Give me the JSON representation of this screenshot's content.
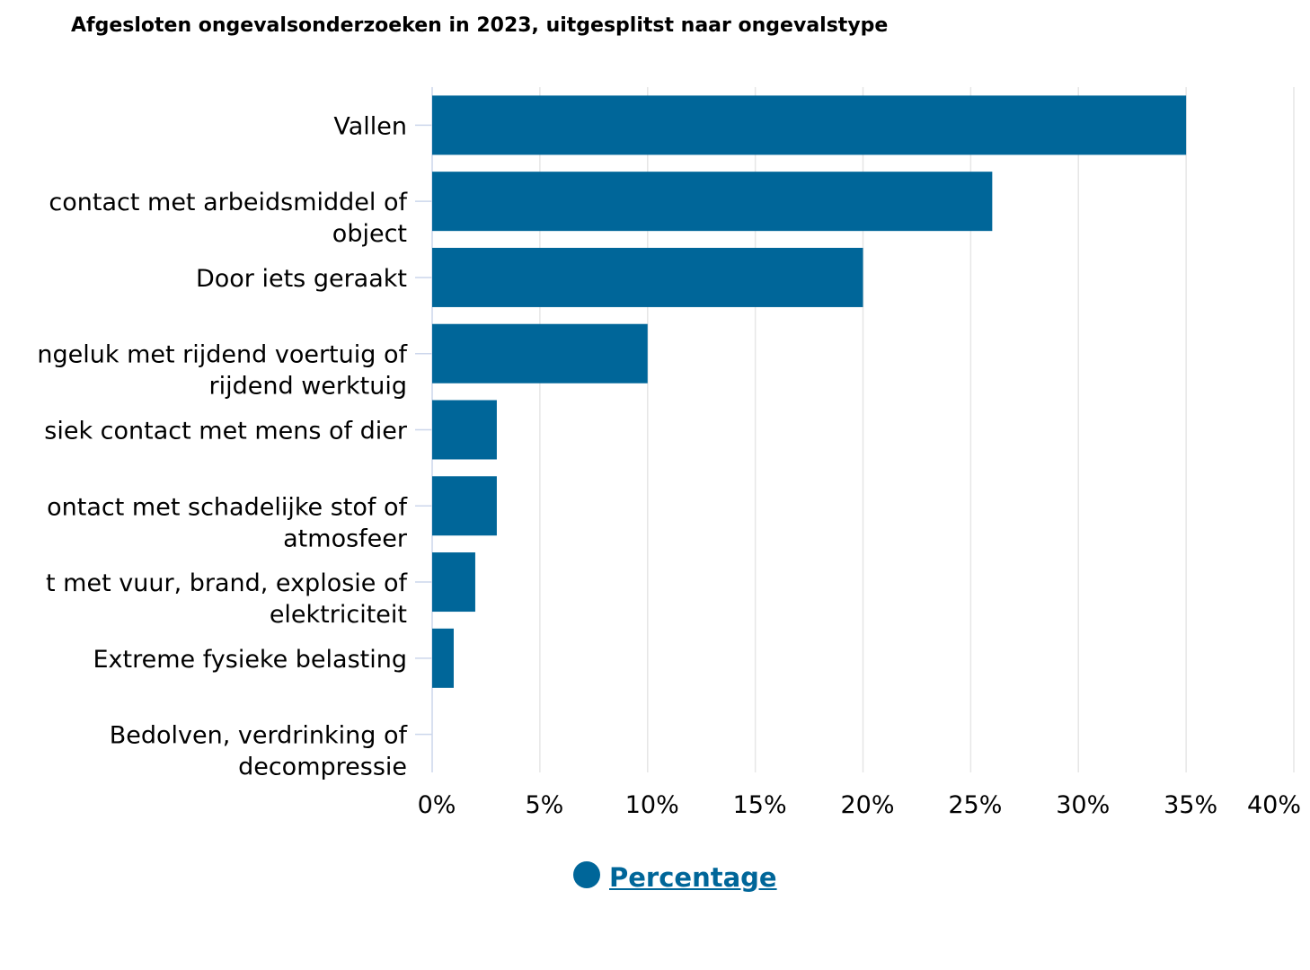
{
  "chart_data": {
    "type": "bar",
    "orientation": "horizontal",
    "title": "Afgesloten ongevalsonderzoeken in 2023, uitgesplitst naar ongevalstype",
    "categories": [
      [
        "Vallen"
      ],
      [
        "contact met arbeidsmiddel of",
        "object"
      ],
      [
        "Door iets geraakt"
      ],
      [
        "ngeluk met rijdend voertuig of",
        "rijdend werktuig"
      ],
      [
        "siek contact met mens of dier"
      ],
      [
        "ontact met schadelijke stof of",
        "atmosfeer"
      ],
      [
        "t met vuur, brand, explosie of",
        "elektriciteit"
      ],
      [
        "Extreme fysieke belasting"
      ],
      [
        "Bedolven, verdrinking of",
        "decompressie"
      ]
    ],
    "series": [
      {
        "name": "Percentage",
        "color": "#006699",
        "values": [
          35,
          26,
          20,
          10,
          3,
          3,
          2,
          1,
          0
        ]
      }
    ],
    "xlim": [
      0,
      40
    ],
    "xticks": [
      "0%",
      "5%",
      "10%",
      "15%",
      "20%",
      "25%",
      "30%",
      "35%",
      "40%"
    ],
    "grid": true,
    "legend_position": "bottom"
  }
}
